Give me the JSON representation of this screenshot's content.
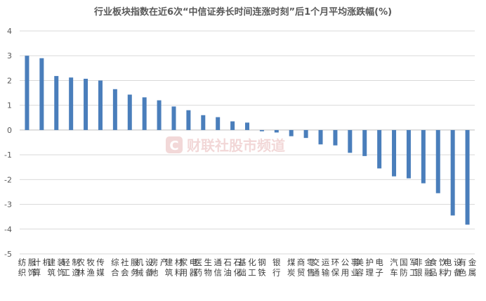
{
  "chart_data": {
    "type": "bar",
    "title": "行业板块指数在近6次“中信证券长时间连涨时刻”后1个月平均涨跌幅(%)",
    "xlabel": "",
    "ylabel": "",
    "ylim": [
      -5,
      4
    ],
    "yticks": [
      4,
      3,
      2,
      1,
      0,
      -1,
      -2,
      -3,
      -4,
      -5
    ],
    "grid": "horizontal",
    "bar_color": "#4a7ebb",
    "categories": [
      "纺织服饰",
      "计算机",
      "建筑装饰",
      "轻工制造",
      "农林牧渔",
      "传媒",
      "综合",
      "社会服务",
      "机械设备",
      "房地产",
      "建筑材料",
      "家用电器",
      "医药生物",
      "通信",
      "石油石化",
      "基础化工",
      "钢铁",
      "银行",
      "煤炭",
      "商贸零售",
      "交通运输",
      "环保",
      "公用事业",
      "美容护理",
      "电子",
      "汽车",
      "国防军工",
      "非银金融",
      "食品饮料",
      "电力设备",
      "有色金属"
    ],
    "values": [
      3.0,
      2.9,
      2.18,
      2.12,
      2.07,
      2.0,
      1.65,
      1.43,
      1.32,
      1.2,
      0.95,
      0.8,
      0.6,
      0.52,
      0.35,
      0.3,
      -0.05,
      -0.1,
      -0.25,
      -0.32,
      -0.58,
      -0.62,
      -0.92,
      -1.05,
      -1.55,
      -1.87,
      -1.95,
      -2.15,
      -2.55,
      -3.45,
      -3.82
    ]
  },
  "watermark": {
    "logo_letter": "C",
    "text": "财联社股市频道"
  }
}
